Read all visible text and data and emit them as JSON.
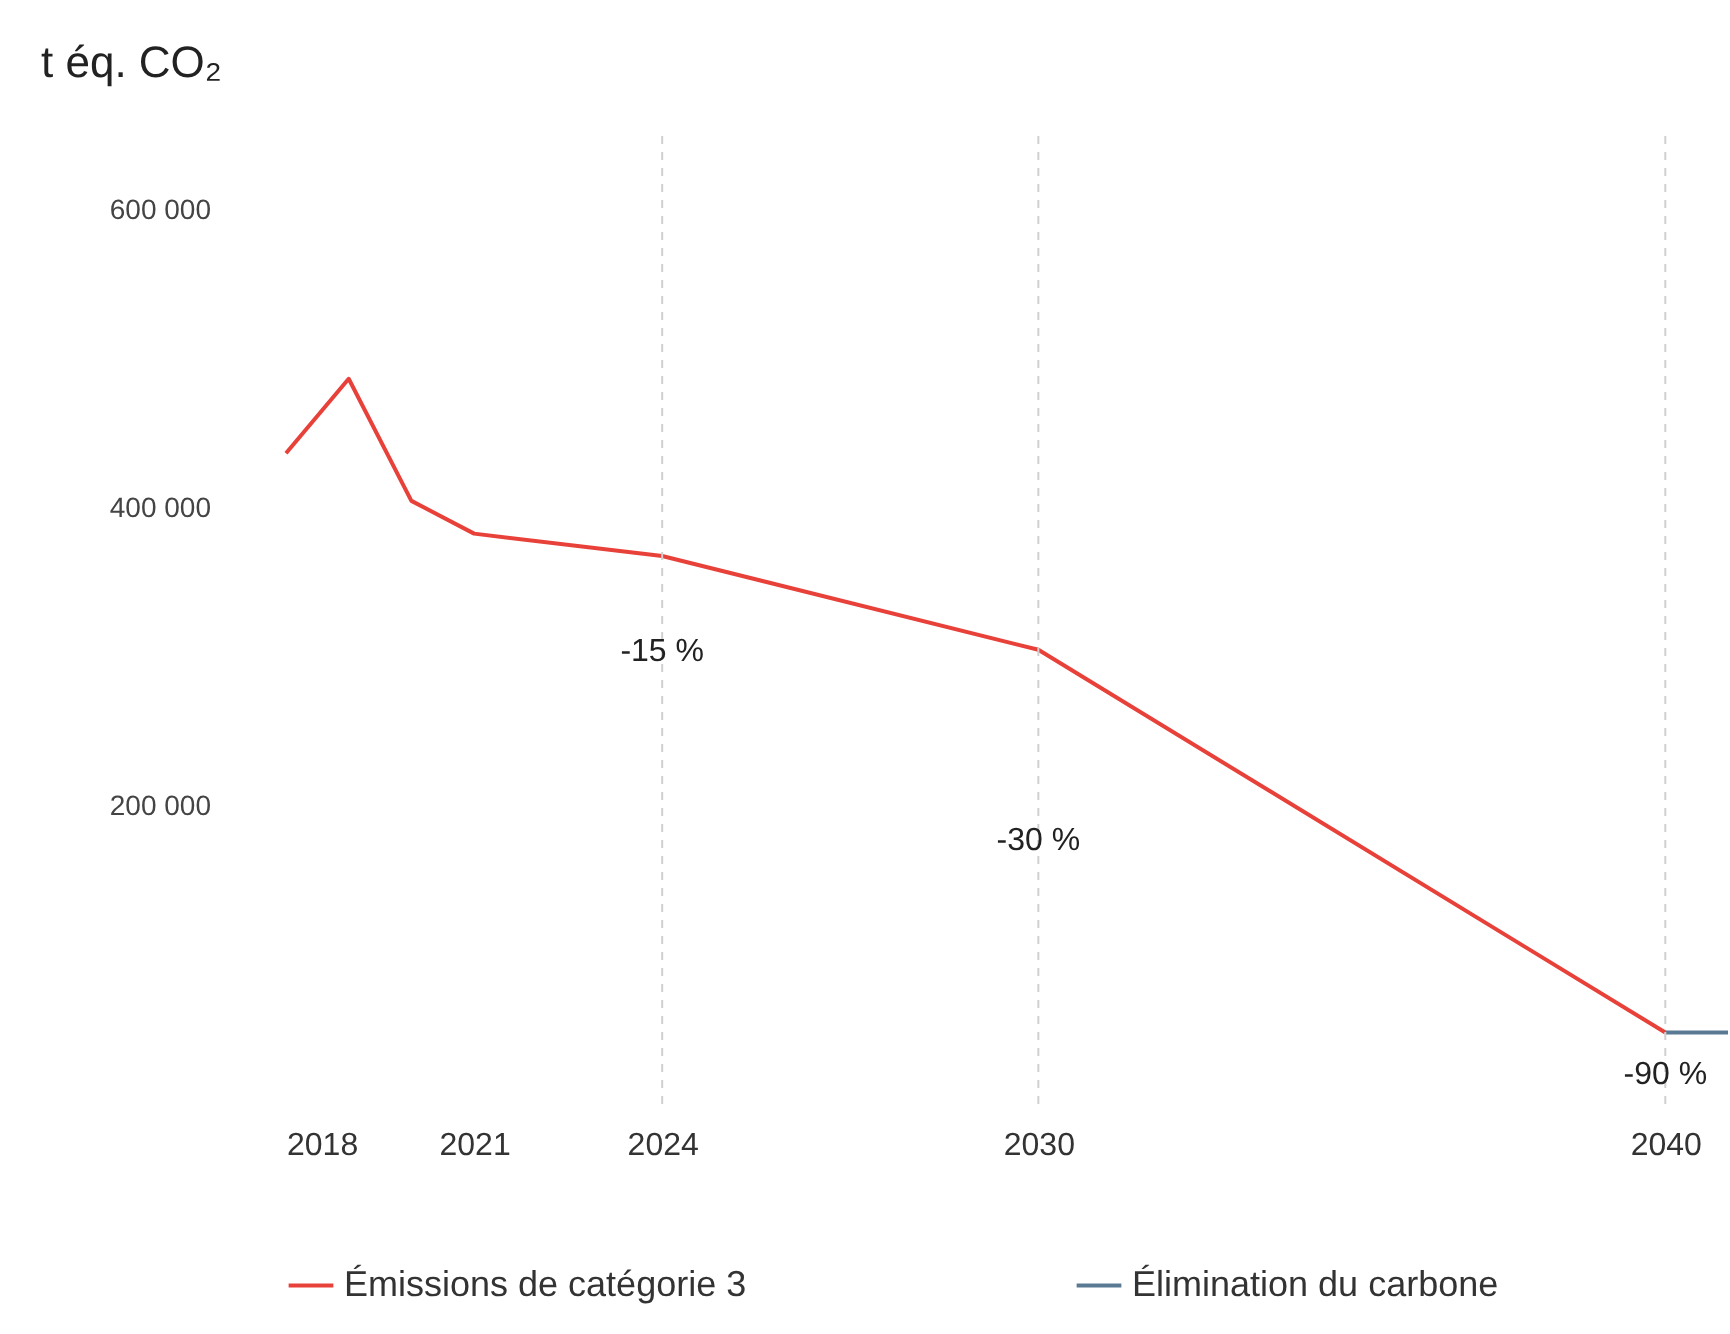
{
  "chart_data": {
    "type": "line",
    "ylabel": "t éq. CO₂",
    "xlim": [
      2018,
      2041
    ],
    "xticks": [
      2018,
      2021,
      2024,
      2030,
      2040
    ],
    "ylim": [
      0,
      650000
    ],
    "yticks": [
      {
        "value": 200000,
        "label": "200 000"
      },
      {
        "value": 400000,
        "label": "400 000"
      },
      {
        "value": 600000,
        "label": "600 000"
      }
    ],
    "series": [
      {
        "name": "Émissions de catégorie 3",
        "color": "#e8413a",
        "x": [
          2018,
          2019,
          2020,
          2021,
          2024,
          2030,
          2040
        ],
        "values": [
          437000,
          487000,
          405000,
          383000,
          368000,
          305000,
          48000
        ]
      },
      {
        "name": "Élimination du carbone",
        "color": "#5a7a94",
        "x": [
          2040,
          2041
        ],
        "values": [
          48000,
          48000
        ]
      }
    ],
    "ref_lines": [
      {
        "axis": "x",
        "value": 2024,
        "color": "#d0d0d0",
        "line_style": "dashed"
      },
      {
        "axis": "x",
        "value": 2030,
        "color": "#d0d0d0",
        "line_style": "dashed"
      },
      {
        "axis": "x",
        "value": 2040,
        "color": "#d0d0d0",
        "line_style": "dashed"
      }
    ],
    "annotations": [
      {
        "text": "-15 %",
        "x": 2024,
        "y": 304000
      },
      {
        "text": "-30 %",
        "x": 2030,
        "y": 177000
      },
      {
        "text": "-90 %",
        "x": 2040,
        "y": 20000
      }
    ],
    "grid": false,
    "legend": "bottom",
    "line_style": "solid",
    "marker": "none"
  }
}
